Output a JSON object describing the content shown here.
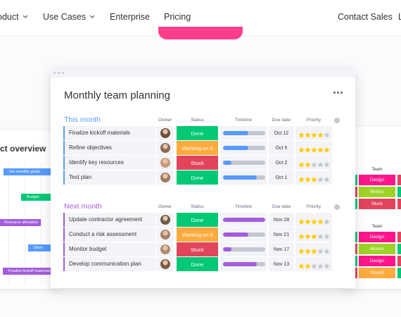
{
  "nav": {
    "left": [
      {
        "text": "oduct",
        "dropdown": true
      },
      {
        "text": "Use Cases",
        "dropdown": true
      },
      {
        "text": "Enterprise",
        "dropdown": false
      },
      {
        "text": "Pricing",
        "dropdown": false
      }
    ],
    "right": [
      "Contact Sales",
      "L"
    ]
  },
  "board": {
    "title": "Monthly team planning",
    "columns": [
      "Owner",
      "Status",
      "Timeline",
      "Due date",
      "Priority"
    ],
    "groups": [
      {
        "name": "This month",
        "color": "#579bfc",
        "rows": [
          {
            "name": "Finalize kickoff materials",
            "status": "Done",
            "status_color": "#00c875",
            "timeline": 0.6,
            "due": "Oct 12",
            "priority": 4
          },
          {
            "name": "Refine objectives",
            "status": "Working on it",
            "status_color": "#fdab3d",
            "timeline": 0.6,
            "due": "Oct 5",
            "priority": 5
          },
          {
            "name": "Identify key resources",
            "status": "Stuck",
            "status_color": "#e2445c",
            "timeline": 0.2,
            "due": "Oct 2",
            "priority": 2
          },
          {
            "name": "Test plan",
            "status": "Done",
            "status_color": "#00c875",
            "timeline": 0.8,
            "due": "Oct 1",
            "priority": 3
          }
        ]
      },
      {
        "name": "Next month",
        "color": "#a25ddc",
        "rows": [
          {
            "name": "Update contractor agreement",
            "status": "Done",
            "status_color": "#00c875",
            "timeline": 1.0,
            "due": "Nov 28",
            "priority": 4
          },
          {
            "name": "Conduct a risk assessment",
            "status": "Working on it",
            "status_color": "#fdab3d",
            "timeline": 0.6,
            "due": "Nov 21",
            "priority": 3
          },
          {
            "name": "Monitor budget",
            "status": "Stuck",
            "status_color": "#e2445c",
            "timeline": 0.2,
            "due": "Nov 17",
            "priority": 3
          },
          {
            "name": "Develop communication plan",
            "status": "Done",
            "status_color": "#00c875",
            "timeline": 0.8,
            "due": "Nov 13",
            "priority": 2
          }
        ]
      }
    ]
  },
  "overview": {
    "title": "ct overview",
    "tasks": [
      {
        "label": "Set monthly goals",
        "color": "#579bfc"
      },
      {
        "label": "Budget",
        "color": "#00c875"
      },
      {
        "label": "Resource allocation",
        "color": "#a25ddc"
      },
      {
        "label": "Deve",
        "color": "#579bfc"
      },
      {
        "label": "Finalize kickoff materials",
        "color": "#a25ddc"
      }
    ]
  },
  "team": {
    "groups": [
      {
        "header": "Team",
        "tags": [
          {
            "label": "Design",
            "color": "#ff158a"
          },
          {
            "label": "Motion",
            "color": "#9cd326"
          },
          {
            "label": "Stuck",
            "color": "#e2445c"
          }
        ]
      },
      {
        "header": "Team",
        "tags": [
          {
            "label": "Design",
            "color": "#ff158a"
          },
          {
            "label": "Motion",
            "color": "#9cd326"
          },
          {
            "label": "Design",
            "color": "#ff158a"
          },
          {
            "label": "Sound",
            "color": "#fdab3d"
          }
        ]
      }
    ]
  }
}
